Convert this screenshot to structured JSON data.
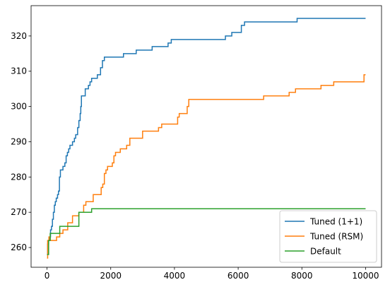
{
  "chart_data": {
    "type": "line",
    "title": "",
    "xlabel": "",
    "ylabel": "",
    "xlim": [
      -500,
      10500
    ],
    "ylim": [
      254.4,
      328.6
    ],
    "xticks": [
      0,
      2000,
      4000,
      6000,
      8000,
      10000
    ],
    "yticks": [
      260,
      270,
      280,
      290,
      300,
      310,
      320
    ],
    "grid": false,
    "legend_position": "bottom-right",
    "series": [
      {
        "name": "Tuned (1+1)",
        "color": "#1f77b4",
        "points": [
          [
            0,
            258
          ],
          [
            20,
            258
          ],
          [
            20,
            261
          ],
          [
            50,
            261
          ],
          [
            50,
            262
          ],
          [
            80,
            262
          ],
          [
            80,
            263
          ],
          [
            110,
            263
          ],
          [
            110,
            265
          ],
          [
            140,
            265
          ],
          [
            140,
            266
          ],
          [
            170,
            266
          ],
          [
            170,
            268
          ],
          [
            200,
            268
          ],
          [
            200,
            270
          ],
          [
            230,
            270
          ],
          [
            230,
            272
          ],
          [
            260,
            272
          ],
          [
            260,
            273
          ],
          [
            290,
            273
          ],
          [
            290,
            274
          ],
          [
            330,
            274
          ],
          [
            330,
            275
          ],
          [
            360,
            275
          ],
          [
            360,
            276
          ],
          [
            390,
            276
          ],
          [
            390,
            280
          ],
          [
            420,
            280
          ],
          [
            420,
            282
          ],
          [
            500,
            282
          ],
          [
            500,
            283
          ],
          [
            560,
            283
          ],
          [
            560,
            284
          ],
          [
            600,
            284
          ],
          [
            600,
            286
          ],
          [
            640,
            286
          ],
          [
            640,
            287
          ],
          [
            680,
            287
          ],
          [
            680,
            288
          ],
          [
            720,
            288
          ],
          [
            720,
            289
          ],
          [
            800,
            289
          ],
          [
            800,
            290
          ],
          [
            860,
            290
          ],
          [
            860,
            291
          ],
          [
            900,
            291
          ],
          [
            900,
            292
          ],
          [
            960,
            292
          ],
          [
            960,
            294
          ],
          [
            1000,
            294
          ],
          [
            1000,
            296
          ],
          [
            1040,
            296
          ],
          [
            1040,
            298
          ],
          [
            1060,
            298
          ],
          [
            1060,
            300
          ],
          [
            1080,
            300
          ],
          [
            1080,
            303
          ],
          [
            1200,
            303
          ],
          [
            1200,
            305
          ],
          [
            1300,
            305
          ],
          [
            1300,
            306
          ],
          [
            1350,
            306
          ],
          [
            1350,
            307
          ],
          [
            1400,
            307
          ],
          [
            1400,
            308
          ],
          [
            1580,
            308
          ],
          [
            1580,
            309
          ],
          [
            1680,
            309
          ],
          [
            1680,
            311
          ],
          [
            1740,
            311
          ],
          [
            1740,
            313
          ],
          [
            1800,
            313
          ],
          [
            1800,
            314
          ],
          [
            2400,
            314
          ],
          [
            2400,
            315
          ],
          [
            2800,
            315
          ],
          [
            2800,
            316
          ],
          [
            3300,
            316
          ],
          [
            3300,
            317
          ],
          [
            3800,
            317
          ],
          [
            3800,
            318
          ],
          [
            3900,
            318
          ],
          [
            3900,
            319
          ],
          [
            5600,
            319
          ],
          [
            5600,
            320
          ],
          [
            5800,
            320
          ],
          [
            5800,
            321
          ],
          [
            6100,
            321
          ],
          [
            6100,
            323
          ],
          [
            6200,
            323
          ],
          [
            6200,
            324
          ],
          [
            7850,
            324
          ],
          [
            7850,
            325
          ],
          [
            10000,
            325
          ]
        ]
      },
      {
        "name": "Tuned (RSM)",
        "color": "#ff7f0e",
        "points": [
          [
            0,
            257
          ],
          [
            20,
            257
          ],
          [
            20,
            262
          ],
          [
            60,
            262
          ],
          [
            60,
            263
          ],
          [
            100,
            263
          ],
          [
            100,
            262
          ],
          [
            300,
            262
          ],
          [
            300,
            263
          ],
          [
            400,
            263
          ],
          [
            400,
            264
          ],
          [
            500,
            264
          ],
          [
            500,
            265
          ],
          [
            650,
            265
          ],
          [
            650,
            267
          ],
          [
            800,
            267
          ],
          [
            800,
            269
          ],
          [
            1000,
            269
          ],
          [
            1000,
            270
          ],
          [
            1150,
            270
          ],
          [
            1150,
            272
          ],
          [
            1220,
            272
          ],
          [
            1220,
            273
          ],
          [
            1450,
            273
          ],
          [
            1450,
            275
          ],
          [
            1700,
            275
          ],
          [
            1700,
            277
          ],
          [
            1750,
            277
          ],
          [
            1750,
            278
          ],
          [
            1800,
            278
          ],
          [
            1800,
            281
          ],
          [
            1850,
            281
          ],
          [
            1850,
            282
          ],
          [
            1900,
            282
          ],
          [
            1900,
            283
          ],
          [
            2050,
            283
          ],
          [
            2050,
            284
          ],
          [
            2100,
            284
          ],
          [
            2100,
            286
          ],
          [
            2150,
            286
          ],
          [
            2150,
            287
          ],
          [
            2300,
            287
          ],
          [
            2300,
            288
          ],
          [
            2500,
            288
          ],
          [
            2500,
            289
          ],
          [
            2600,
            289
          ],
          [
            2600,
            291
          ],
          [
            3000,
            291
          ],
          [
            3000,
            293
          ],
          [
            3500,
            293
          ],
          [
            3500,
            294
          ],
          [
            3600,
            294
          ],
          [
            3600,
            295
          ],
          [
            4100,
            295
          ],
          [
            4100,
            297
          ],
          [
            4150,
            297
          ],
          [
            4150,
            298
          ],
          [
            4400,
            298
          ],
          [
            4400,
            300
          ],
          [
            4450,
            300
          ],
          [
            4450,
            302
          ],
          [
            6800,
            302
          ],
          [
            6800,
            303
          ],
          [
            7600,
            303
          ],
          [
            7600,
            304
          ],
          [
            7800,
            304
          ],
          [
            7800,
            305
          ],
          [
            8600,
            305
          ],
          [
            8600,
            306
          ],
          [
            9000,
            306
          ],
          [
            9000,
            307
          ],
          [
            9950,
            307
          ],
          [
            9950,
            309
          ],
          [
            10000,
            309
          ]
        ]
      },
      {
        "name": "Default",
        "color": "#2ca02c",
        "points": [
          [
            0,
            258
          ],
          [
            50,
            258
          ],
          [
            50,
            262
          ],
          [
            100,
            262
          ],
          [
            100,
            264
          ],
          [
            400,
            264
          ],
          [
            400,
            266
          ],
          [
            1000,
            266
          ],
          [
            1000,
            270
          ],
          [
            1400,
            270
          ],
          [
            1400,
            271
          ],
          [
            10000,
            271
          ]
        ]
      }
    ]
  }
}
